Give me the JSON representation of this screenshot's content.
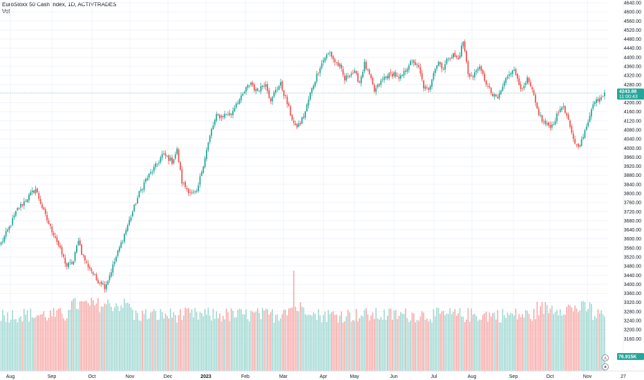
{
  "legend": {
    "title": "EuroStoxx 50 Cash Index, 1D, ACTIVTRADES",
    "volume_label": "Vol"
  },
  "price_tag": {
    "value": "4243.88",
    "countdown": "11:00:43"
  },
  "volume_tag": {
    "value": "76.915K"
  },
  "colors": {
    "up": "#26a69a",
    "down": "#ef5350",
    "vol_up": "#9fd8d2",
    "vol_down": "#f7a9a7",
    "price_line": "#26a69a",
    "grid": "#f0f3fa"
  },
  "chart_data": {
    "type": "candlestick",
    "title": "EuroStoxx 50 Cash Index, 1D, ACTIVTRADES",
    "ylim": [
      3100,
      4640
    ],
    "y_ticks": [
      "4640.00",
      "4600.00",
      "4560.00",
      "4520.00",
      "4480.00",
      "4440.00",
      "4400.00",
      "4360.00",
      "4320.00",
      "4280.00",
      "4240.00",
      "4200.00",
      "4160.00",
      "4120.00",
      "4080.00",
      "4040.00",
      "4000.00",
      "3960.00",
      "3920.00",
      "3880.00",
      "3840.00",
      "3800.00",
      "3760.00",
      "3720.00",
      "3680.00",
      "3640.00",
      "3600.00",
      "3560.00",
      "3520.00",
      "3480.00",
      "3440.00",
      "3400.00",
      "3360.00",
      "3320.00",
      "3280.00",
      "3240.00",
      "3200.00",
      "3160.00"
    ],
    "x_ticks": [
      "Aug",
      "Sep",
      "Oct",
      "Nov",
      "Dec",
      "2023",
      "Feb",
      "Mar",
      "Apr",
      "May",
      "Jun",
      "Jul",
      "Aug",
      "Sep",
      "Oct",
      "Nov",
      "27"
    ],
    "last_price": 4243.88,
    "anchors": [
      [
        0,
        3580
      ],
      [
        5,
        3650
      ],
      [
        10,
        3730
      ],
      [
        16,
        3780
      ],
      [
        21,
        3820
      ],
      [
        24,
        3760
      ],
      [
        27,
        3700
      ],
      [
        30,
        3650
      ],
      [
        33,
        3610
      ],
      [
        36,
        3550
      ],
      [
        40,
        3480
      ],
      [
        44,
        3500
      ],
      [
        47,
        3600
      ],
      [
        49,
        3540
      ],
      [
        52,
        3490
      ],
      [
        55,
        3460
      ],
      [
        58,
        3420
      ],
      [
        61,
        3410
      ],
      [
        63,
        3390
      ],
      [
        65,
        3420
      ],
      [
        68,
        3480
      ],
      [
        72,
        3560
      ],
      [
        76,
        3640
      ],
      [
        80,
        3720
      ],
      [
        84,
        3800
      ],
      [
        88,
        3860
      ],
      [
        92,
        3900
      ],
      [
        95,
        3930
      ],
      [
        98,
        3970
      ],
      [
        101,
        3960
      ],
      [
        104,
        3940
      ],
      [
        107,
        3990
      ],
      [
        110,
        3850
      ],
      [
        113,
        3820
      ],
      [
        116,
        3800
      ],
      [
        119,
        3800
      ],
      [
        122,
        3900
      ],
      [
        125,
        3990
      ],
      [
        128,
        4080
      ],
      [
        131,
        4140
      ],
      [
        134,
        4140
      ],
      [
        137,
        4150
      ],
      [
        140,
        4150
      ],
      [
        143,
        4200
      ],
      [
        146,
        4220
      ],
      [
        149,
        4260
      ],
      [
        152,
        4290
      ],
      [
        155,
        4250
      ],
      [
        158,
        4270
      ],
      [
        161,
        4290
      ],
      [
        164,
        4200
      ],
      [
        167,
        4260
      ],
      [
        170,
        4280
      ],
      [
        173,
        4220
      ],
      [
        176,
        4150
      ],
      [
        179,
        4090
      ],
      [
        182,
        4110
      ],
      [
        185,
        4160
      ],
      [
        188,
        4240
      ],
      [
        191,
        4300
      ],
      [
        194,
        4360
      ],
      [
        197,
        4400
      ],
      [
        200,
        4420
      ],
      [
        203,
        4380
      ],
      [
        206,
        4360
      ],
      [
        209,
        4300
      ],
      [
        212,
        4330
      ],
      [
        215,
        4330
      ],
      [
        218,
        4290
      ],
      [
        221,
        4370
      ],
      [
        224,
        4320
      ],
      [
        227,
        4250
      ],
      [
        230,
        4280
      ],
      [
        233,
        4310
      ],
      [
        236,
        4320
      ],
      [
        239,
        4330
      ],
      [
        242,
        4300
      ],
      [
        245,
        4330
      ],
      [
        248,
        4370
      ],
      [
        251,
        4380
      ],
      [
        254,
        4350
      ],
      [
        257,
        4270
      ],
      [
        260,
        4250
      ],
      [
        263,
        4340
      ],
      [
        266,
        4380
      ],
      [
        269,
        4350
      ],
      [
        272,
        4400
      ],
      [
        275,
        4410
      ],
      [
        278,
        4390
      ],
      [
        281,
        4470
      ],
      [
        284,
        4330
      ],
      [
        287,
        4310
      ],
      [
        290,
        4360
      ],
      [
        293,
        4320
      ],
      [
        296,
        4270
      ],
      [
        299,
        4230
      ],
      [
        302,
        4220
      ],
      [
        305,
        4270
      ],
      [
        308,
        4320
      ],
      [
        311,
        4350
      ],
      [
        314,
        4310
      ],
      [
        317,
        4250
      ],
      [
        320,
        4300
      ],
      [
        323,
        4250
      ],
      [
        326,
        4170
      ],
      [
        329,
        4120
      ],
      [
        332,
        4100
      ],
      [
        335,
        4100
      ],
      [
        338,
        4140
      ],
      [
        341,
        4190
      ],
      [
        344,
        4140
      ],
      [
        347,
        4060
      ],
      [
        350,
        4010
      ],
      [
        353,
        4030
      ],
      [
        356,
        4090
      ],
      [
        359,
        4180
      ],
      [
        362,
        4210
      ],
      [
        365,
        4230
      ],
      [
        367,
        4243.88
      ]
    ]
  }
}
